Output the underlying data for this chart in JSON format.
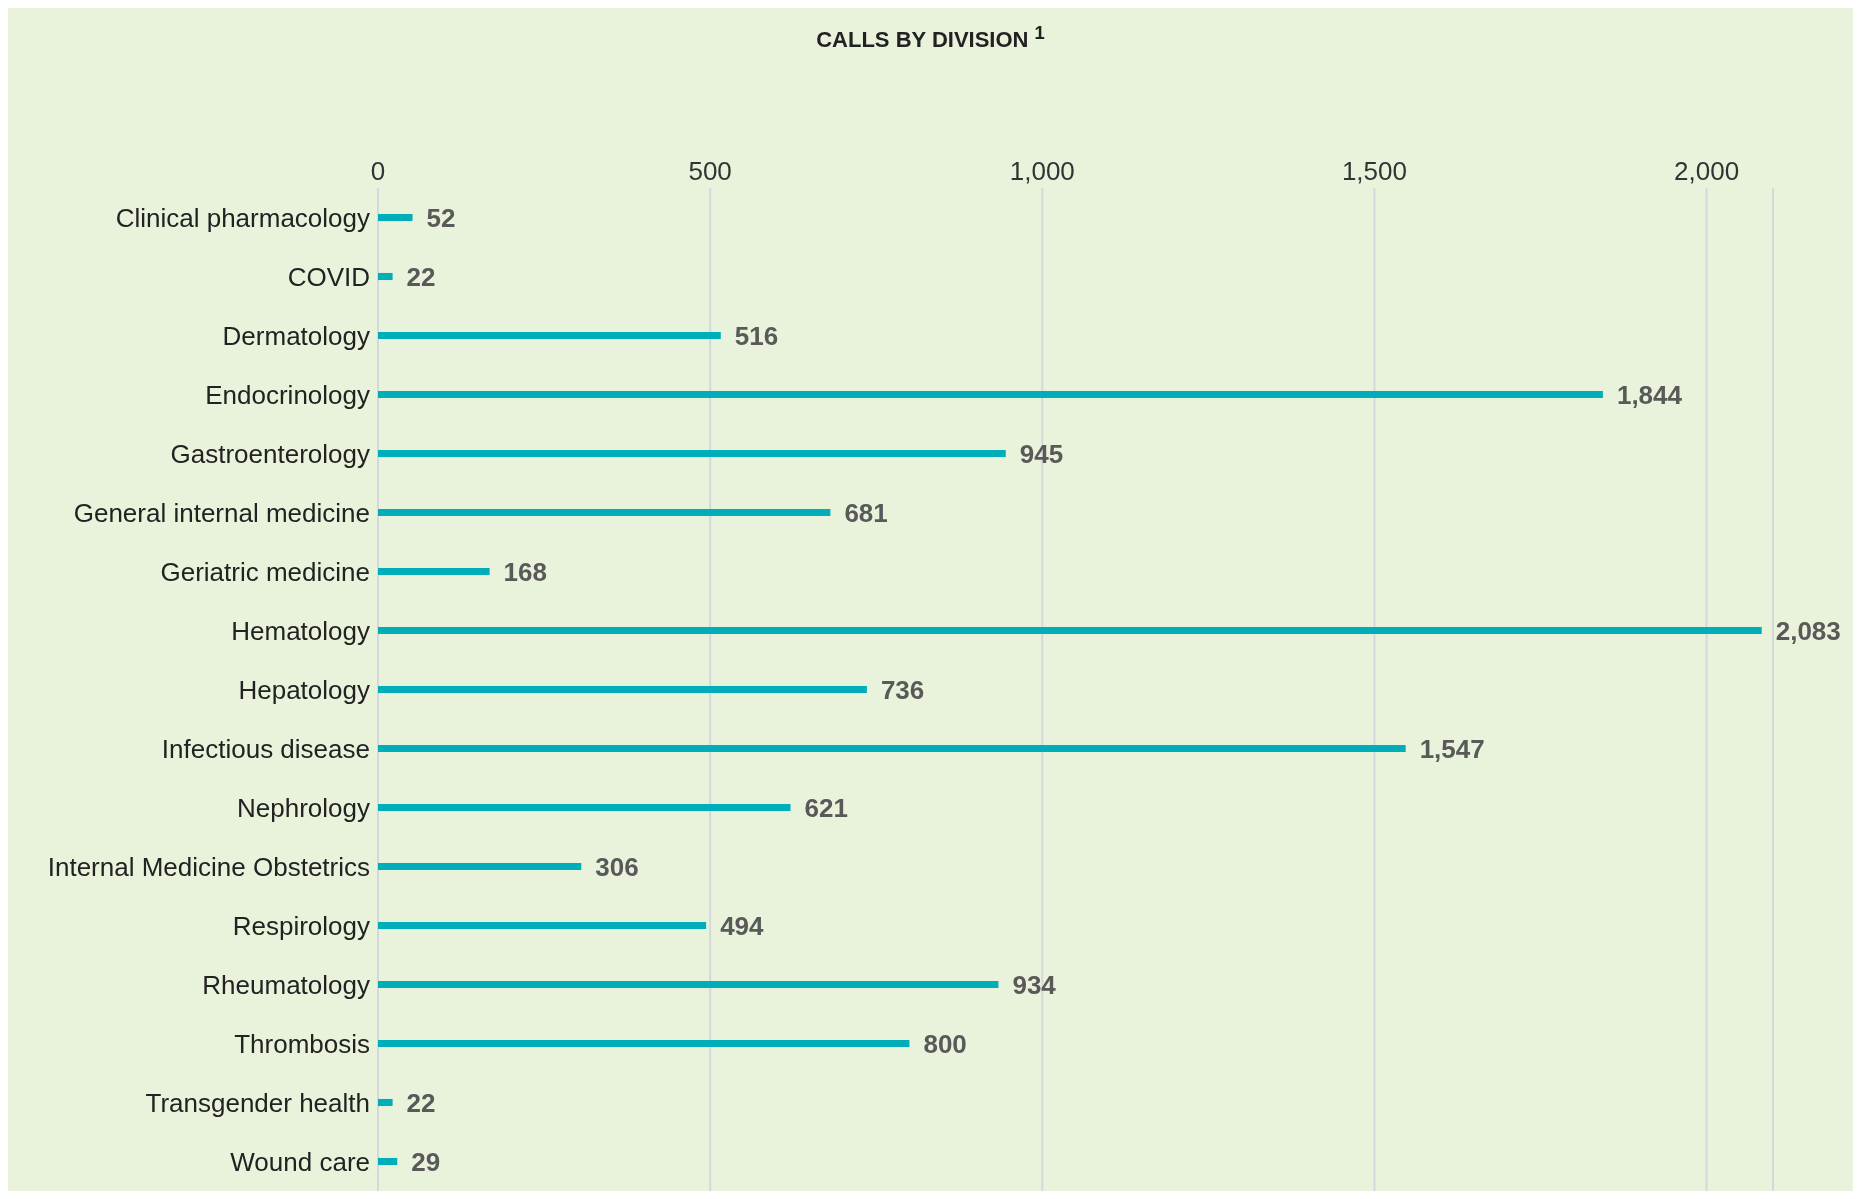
{
  "chart_data": {
    "type": "bar",
    "orientation": "horizontal",
    "title": "CALLS BY DIVISION $^{1}$",
    "categories": [
      "Clinical pharmacology",
      "COVID",
      "Dermatology",
      "Endocrinology",
      "Gastroenterology",
      "General internal medicine",
      "Geriatric medicine",
      "Hematology",
      "Hepatology",
      "Infectious disease",
      "Nephrology",
      "Internal Medicine Obstetrics",
      "Respirology",
      "Rheumatology",
      "Thrombosis",
      "Transgender health",
      "Wound care"
    ],
    "values": [
      52,
      22,
      516,
      1844,
      945,
      681,
      168,
      2083,
      736,
      1547,
      621,
      306,
      494,
      934,
      800,
      22,
      29
    ],
    "value_labels": [
      "52",
      "22",
      "516",
      "1,844",
      "945",
      "681",
      "168",
      "2,083",
      "736",
      "1,547",
      "621",
      "306",
      "494",
      "934",
      "800",
      "22",
      "29"
    ],
    "color": "#00aeb9",
    "xlim": [
      0,
      2100
    ],
    "xticks": [
      0,
      500,
      {
        "value": 1000,
        "label": "1,000"
      },
      {
        "value": 1500,
        "label": "1,500"
      },
      {
        "value": 2000,
        "label": "2,000"
      }
    ],
    "grid": "x"
  }
}
